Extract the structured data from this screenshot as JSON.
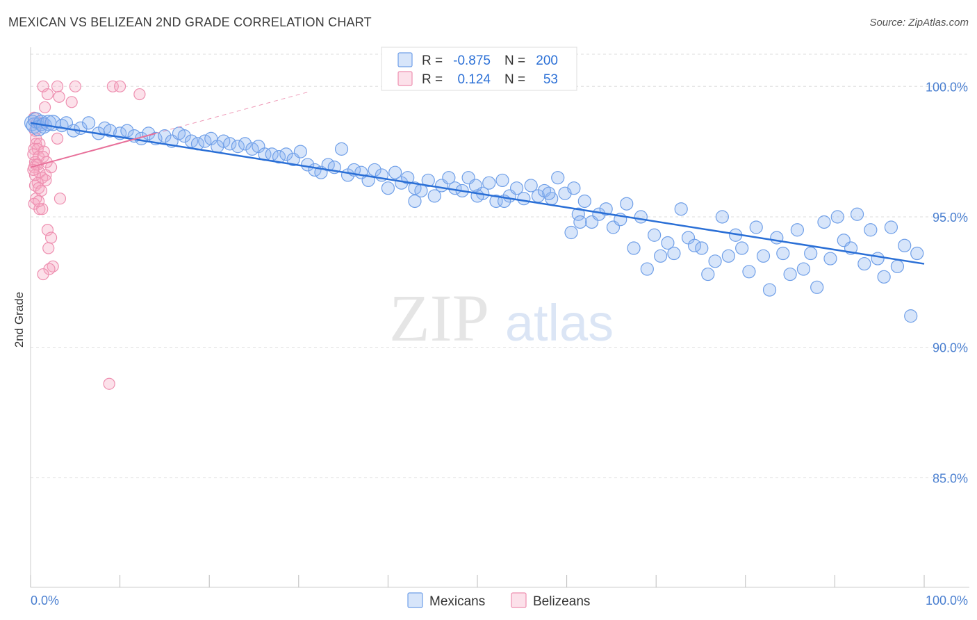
{
  "title": "MEXICAN VS BELIZEAN 2ND GRADE CORRELATION CHART",
  "source": "Source: ZipAtlas.com",
  "watermark": {
    "zip": "ZIP",
    "atlas": "atlas"
  },
  "colors": {
    "blue": "#6f9fe8",
    "blue_fill": "rgba(140,180,240,0.35)",
    "blue_line": "#2a6fd6",
    "pink": "#ee8fb0",
    "pink_fill": "rgba(245,170,195,0.35)",
    "pink_line": "#e8709a",
    "tick_text": "#4a7fd0",
    "grid": "#dddddd"
  },
  "chart_data": {
    "type": "scatter",
    "title": "MEXICAN VS BELIZEAN 2ND GRADE CORRELATION CHART",
    "xlabel": "",
    "ylabel": "2nd Grade",
    "xlim": [
      0,
      100
    ],
    "ylim": [
      80.8,
      101.5
    ],
    "x_ticks": [
      {
        "value": 0,
        "label": "0.0%"
      },
      {
        "value": 100,
        "label": "100.0%"
      }
    ],
    "y_ticks": [
      {
        "value": 85,
        "label": "85.0%"
      },
      {
        "value": 90,
        "label": "90.0%"
      },
      {
        "value": 95,
        "label": "95.0%"
      },
      {
        "value": 100,
        "label": "100.0%"
      }
    ],
    "grid": true,
    "legend_position": "top-center",
    "stats": [
      {
        "r_label": "R = ",
        "r_value": "-0.875",
        "n_label": "N = ",
        "n_value": "200"
      },
      {
        "r_label": "R = ",
        "r_value": "0.124",
        "n_label": "N = ",
        "n_value": "53"
      }
    ],
    "series": [
      {
        "name": "Mexicans",
        "color": "#6f9fe8",
        "trend": {
          "x": [
            0,
            100
          ],
          "y": [
            98.6,
            93.2
          ]
        },
        "points": [
          [
            0.2,
            98.6
          ],
          [
            0.4,
            98.5
          ],
          [
            0.6,
            98.7
          ],
          [
            0.9,
            98.4
          ],
          [
            1.2,
            98.6
          ],
          [
            1.5,
            98.5
          ],
          [
            2.0,
            98.6
          ],
          [
            2.5,
            98.6
          ],
          [
            3.5,
            98.5
          ],
          [
            4.0,
            98.6
          ],
          [
            4.8,
            98.3
          ],
          [
            5.6,
            98.4
          ],
          [
            6.5,
            98.6
          ],
          [
            7.6,
            98.2
          ],
          [
            8.3,
            98.4
          ],
          [
            8.9,
            98.3
          ],
          [
            10.0,
            98.2
          ],
          [
            10.8,
            98.3
          ],
          [
            11.6,
            98.1
          ],
          [
            12.4,
            98.0
          ],
          [
            13.2,
            98.2
          ],
          [
            14.0,
            98.0
          ],
          [
            15.0,
            98.1
          ],
          [
            15.8,
            97.9
          ],
          [
            16.6,
            98.2
          ],
          [
            17.2,
            98.1
          ],
          [
            18.0,
            97.9
          ],
          [
            18.7,
            97.8
          ],
          [
            19.5,
            97.9
          ],
          [
            20.2,
            98.0
          ],
          [
            20.9,
            97.7
          ],
          [
            21.6,
            97.9
          ],
          [
            22.3,
            97.8
          ],
          [
            23.2,
            97.7
          ],
          [
            24.0,
            97.8
          ],
          [
            24.8,
            97.6
          ],
          [
            25.5,
            97.7
          ],
          [
            26.2,
            97.4
          ],
          [
            27.0,
            97.4
          ],
          [
            27.8,
            97.3
          ],
          [
            28.6,
            97.4
          ],
          [
            29.4,
            97.2
          ],
          [
            30.2,
            97.5
          ],
          [
            31.0,
            97.0
          ],
          [
            31.8,
            96.8
          ],
          [
            32.5,
            96.7
          ],
          [
            33.3,
            97.0
          ],
          [
            34.0,
            96.9
          ],
          [
            34.8,
            97.6
          ],
          [
            35.5,
            96.6
          ],
          [
            36.2,
            96.8
          ],
          [
            37.0,
            96.7
          ],
          [
            37.8,
            96.4
          ],
          [
            38.5,
            96.8
          ],
          [
            39.3,
            96.6
          ],
          [
            40.0,
            96.1
          ],
          [
            40.8,
            96.7
          ],
          [
            41.5,
            96.3
          ],
          [
            42.2,
            96.5
          ],
          [
            43.0,
            96.1
          ],
          [
            43.7,
            96.0
          ],
          [
            44.5,
            96.4
          ],
          [
            45.2,
            95.8
          ],
          [
            46.0,
            96.2
          ],
          [
            46.8,
            96.5
          ],
          [
            47.5,
            96.1
          ],
          [
            48.3,
            96.0
          ],
          [
            49.0,
            96.5
          ],
          [
            49.8,
            96.2
          ],
          [
            50.6,
            95.9
          ],
          [
            51.3,
            96.3
          ],
          [
            52.1,
            95.6
          ],
          [
            52.8,
            96.4
          ],
          [
            53.6,
            95.8
          ],
          [
            54.4,
            96.1
          ],
          [
            55.2,
            95.7
          ],
          [
            56.0,
            96.2
          ],
          [
            56.8,
            95.8
          ],
          [
            57.5,
            96.0
          ],
          [
            58.3,
            95.7
          ],
          [
            59.0,
            96.5
          ],
          [
            59.8,
            95.9
          ],
          [
            60.5,
            94.4
          ],
          [
            61.3,
            95.1
          ],
          [
            62.0,
            95.6
          ],
          [
            62.8,
            94.8
          ],
          [
            63.6,
            95.1
          ],
          [
            64.4,
            95.3
          ],
          [
            65.2,
            94.6
          ],
          [
            66.0,
            94.9
          ],
          [
            66.7,
            95.5
          ],
          [
            67.5,
            93.8
          ],
          [
            68.3,
            95.0
          ],
          [
            69.0,
            93.0
          ],
          [
            69.8,
            94.3
          ],
          [
            70.5,
            93.5
          ],
          [
            71.3,
            94.0
          ],
          [
            72.0,
            93.6
          ],
          [
            72.8,
            95.3
          ],
          [
            73.6,
            94.2
          ],
          [
            74.3,
            93.9
          ],
          [
            75.1,
            93.8
          ],
          [
            75.8,
            92.8
          ],
          [
            76.6,
            93.3
          ],
          [
            77.4,
            95.0
          ],
          [
            78.1,
            93.5
          ],
          [
            78.9,
            94.3
          ],
          [
            79.6,
            93.8
          ],
          [
            80.4,
            92.9
          ],
          [
            81.2,
            94.6
          ],
          [
            82.0,
            93.5
          ],
          [
            82.7,
            92.2
          ],
          [
            83.5,
            94.2
          ],
          [
            84.2,
            93.6
          ],
          [
            85.0,
            92.8
          ],
          [
            85.8,
            94.5
          ],
          [
            86.5,
            93.0
          ],
          [
            87.3,
            93.6
          ],
          [
            88.0,
            92.3
          ],
          [
            88.8,
            94.8
          ],
          [
            89.5,
            93.4
          ],
          [
            90.3,
            95.0
          ],
          [
            91.0,
            94.1
          ],
          [
            91.8,
            93.8
          ],
          [
            92.5,
            95.1
          ],
          [
            93.3,
            93.2
          ],
          [
            94.0,
            94.5
          ],
          [
            94.8,
            93.4
          ],
          [
            95.5,
            92.7
          ],
          [
            96.3,
            94.6
          ],
          [
            97.0,
            93.1
          ],
          [
            97.8,
            93.9
          ],
          [
            98.5,
            91.2
          ],
          [
            99.2,
            93.6
          ],
          [
            61.5,
            94.8
          ],
          [
            60.8,
            96.1
          ],
          [
            53.0,
            95.6
          ],
          [
            58.0,
            95.9
          ],
          [
            50.0,
            95.8
          ],
          [
            43.0,
            95.6
          ]
        ]
      },
      {
        "name": "Belizeans",
        "color": "#ee8fb0",
        "trend": {
          "x": [
            0,
            14
          ],
          "y": [
            96.9,
            98.2
          ]
        },
        "points": [
          [
            1.4,
            100.0
          ],
          [
            3.0,
            100.0
          ],
          [
            5.0,
            100.0
          ],
          [
            9.2,
            100.0
          ],
          [
            10.0,
            100.0
          ],
          [
            1.9,
            99.7
          ],
          [
            3.2,
            99.6
          ],
          [
            12.2,
            99.7
          ],
          [
            4.6,
            99.4
          ],
          [
            1.6,
            99.2
          ],
          [
            0.4,
            98.8
          ],
          [
            0.7,
            98.6
          ],
          [
            1.3,
            98.6
          ],
          [
            0.5,
            98.3
          ],
          [
            0.6,
            98.0
          ],
          [
            3.0,
            98.0
          ],
          [
            0.6,
            97.8
          ],
          [
            1.0,
            97.8
          ],
          [
            0.4,
            97.6
          ],
          [
            0.8,
            97.6
          ],
          [
            1.5,
            97.5
          ],
          [
            0.3,
            97.4
          ],
          [
            0.9,
            97.3
          ],
          [
            1.4,
            97.3
          ],
          [
            0.5,
            97.1
          ],
          [
            0.6,
            97.0
          ],
          [
            0.4,
            96.9
          ],
          [
            2.3,
            96.9
          ],
          [
            1.0,
            96.7
          ],
          [
            1.7,
            96.6
          ],
          [
            0.5,
            96.6
          ],
          [
            1.3,
            96.5
          ],
          [
            1.7,
            96.4
          ],
          [
            0.8,
            96.3
          ],
          [
            0.5,
            96.2
          ],
          [
            0.9,
            96.1
          ],
          [
            0.6,
            95.7
          ],
          [
            3.3,
            95.7
          ],
          [
            0.4,
            95.5
          ],
          [
            1.0,
            95.3
          ],
          [
            1.3,
            95.3
          ],
          [
            1.9,
            94.5
          ],
          [
            2.3,
            94.2
          ],
          [
            2.0,
            93.8
          ],
          [
            2.5,
            93.1
          ],
          [
            2.1,
            93.0
          ],
          [
            1.4,
            92.8
          ],
          [
            8.8,
            88.6
          ],
          [
            0.8,
            97.0
          ],
          [
            1.2,
            96.0
          ],
          [
            0.3,
            96.8
          ],
          [
            1.8,
            97.1
          ],
          [
            0.9,
            95.6
          ]
        ]
      }
    ]
  }
}
